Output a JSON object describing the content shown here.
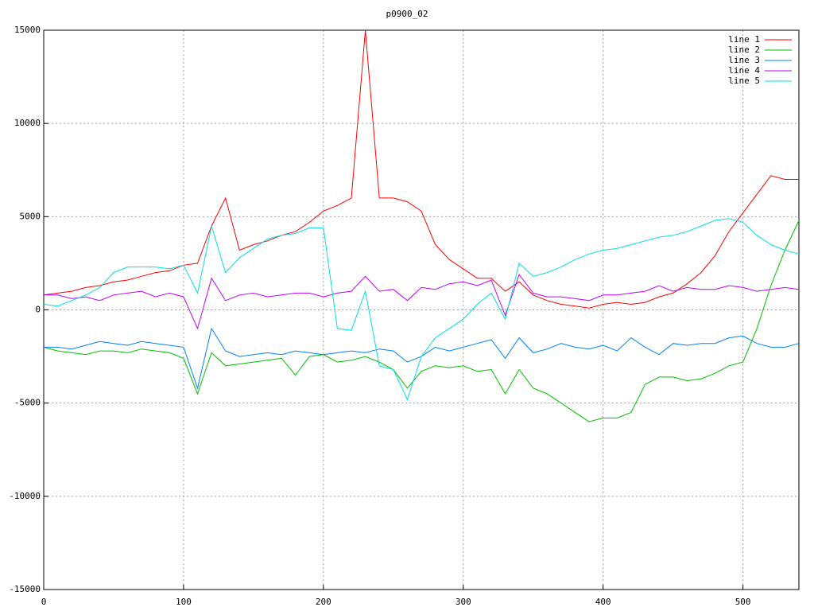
{
  "chart_data": {
    "type": "line",
    "title": "p0900_02",
    "x": [
      0,
      10,
      20,
      30,
      40,
      50,
      60,
      70,
      80,
      90,
      100,
      110,
      120,
      130,
      140,
      150,
      160,
      170,
      180,
      190,
      200,
      210,
      220,
      230,
      240,
      250,
      260,
      270,
      280,
      290,
      300,
      310,
      320,
      330,
      340,
      350,
      360,
      370,
      380,
      390,
      400,
      410,
      420,
      430,
      440,
      450,
      460,
      470,
      480,
      490,
      500,
      510,
      520,
      530,
      540
    ],
    "series": [
      {
        "name": "line 1",
        "color": "#ff0000",
        "values": [
          800,
          900,
          1000,
          1200,
          1300,
          1500,
          1600,
          1800,
          2000,
          2100,
          2400,
          2500,
          4500,
          6000,
          3200,
          3500,
          3700,
          4000,
          4200,
          4700,
          5300,
          5600,
          6000,
          15000,
          6000,
          6000,
          5800,
          5300,
          3500,
          2700,
          2200,
          1700,
          1700,
          1000,
          1500,
          800,
          500,
          300,
          200,
          100,
          300,
          400,
          300,
          400,
          700,
          900,
          1400,
          2000,
          2900,
          4200,
          5200,
          6200,
          7200,
          7000,
          7000
        ]
      },
      {
        "name": "line 2",
        "color": "#00c000",
        "values": [
          -2000,
          -2200,
          -2300,
          -2400,
          -2200,
          -2200,
          -2300,
          -2100,
          -2200,
          -2300,
          -2600,
          -4500,
          -2300,
          -3000,
          -2900,
          -2800,
          -2700,
          -2600,
          -3500,
          -2500,
          -2400,
          -2800,
          -2700,
          -2500,
          -2800,
          -3200,
          -4200,
          -3300,
          -3000,
          -3100,
          -3000,
          -3300,
          -3200,
          -4500,
          -3200,
          -4200,
          -4500,
          -5000,
          -5500,
          -6000,
          -5800,
          -5800,
          -5500,
          -4000,
          -3600,
          -3600,
          -3800,
          -3700,
          -3400,
          -3000,
          -2800,
          -1000,
          1300,
          3200,
          4800
        ]
      },
      {
        "name": "line 3",
        "color": "#0080ff",
        "values": [
          -2000,
          -2000,
          -2100,
          -1900,
          -1700,
          -1800,
          -1900,
          -1700,
          -1800,
          -1900,
          -2000,
          -4200,
          -1000,
          -2200,
          -2500,
          -2400,
          -2300,
          -2400,
          -2200,
          -2300,
          -2400,
          -2300,
          -2200,
          -2300,
          -2100,
          -2200,
          -2800,
          -2500,
          -2000,
          -2200,
          -2000,
          -1800,
          -1600,
          -2600,
          -1500,
          -2300,
          -2100,
          -1800,
          -2000,
          -2100,
          -1900,
          -2200,
          -1500,
          -2000,
          -2400,
          -1800,
          -1900,
          -1800,
          -1800,
          -1500,
          -1400,
          -1800,
          -2000,
          -2000,
          -1800
        ]
      },
      {
        "name": "line 4",
        "color": "#c000ff",
        "values": [
          800,
          800,
          600,
          700,
          500,
          800,
          900,
          1000,
          700,
          900,
          700,
          -1000,
          1700,
          500,
          800,
          900,
          700,
          800,
          900,
          900,
          700,
          900,
          1000,
          1800,
          1000,
          1100,
          500,
          1200,
          1100,
          1400,
          1500,
          1300,
          1600,
          -300,
          1900,
          900,
          700,
          700,
          600,
          500,
          800,
          800,
          900,
          1000,
          1300,
          1000,
          1200,
          1100,
          1100,
          1300,
          1200,
          1000,
          1100,
          1200,
          1100
        ]
      },
      {
        "name": "line 5",
        "color": "#00e0e0",
        "values": [
          300,
          200,
          500,
          800,
          1200,
          2000,
          2300,
          2300,
          2300,
          2200,
          2400,
          900,
          4500,
          2000,
          2800,
          3300,
          3800,
          4000,
          4100,
          4400,
          4400,
          -1000,
          -1100,
          1000,
          -3000,
          -3200,
          -4800,
          -2500,
          -1500,
          -1000,
          -500,
          300,
          900,
          -500,
          2500,
          1800,
          2000,
          2300,
          2700,
          3000,
          3200,
          3300,
          3500,
          3700,
          3900,
          4000,
          4200,
          4500,
          4800,
          4900,
          4700,
          4000,
          3500,
          3200,
          3000
        ]
      }
    ],
    "xlim": [
      0,
      540
    ],
    "xticks": [
      0,
      100,
      200,
      300,
      400,
      500
    ],
    "ylim": [
      -15000,
      15000
    ],
    "yticks": [
      -15000,
      -10000,
      -5000,
      0,
      5000,
      10000,
      15000
    ],
    "grid": true,
    "legend": "top-right"
  }
}
